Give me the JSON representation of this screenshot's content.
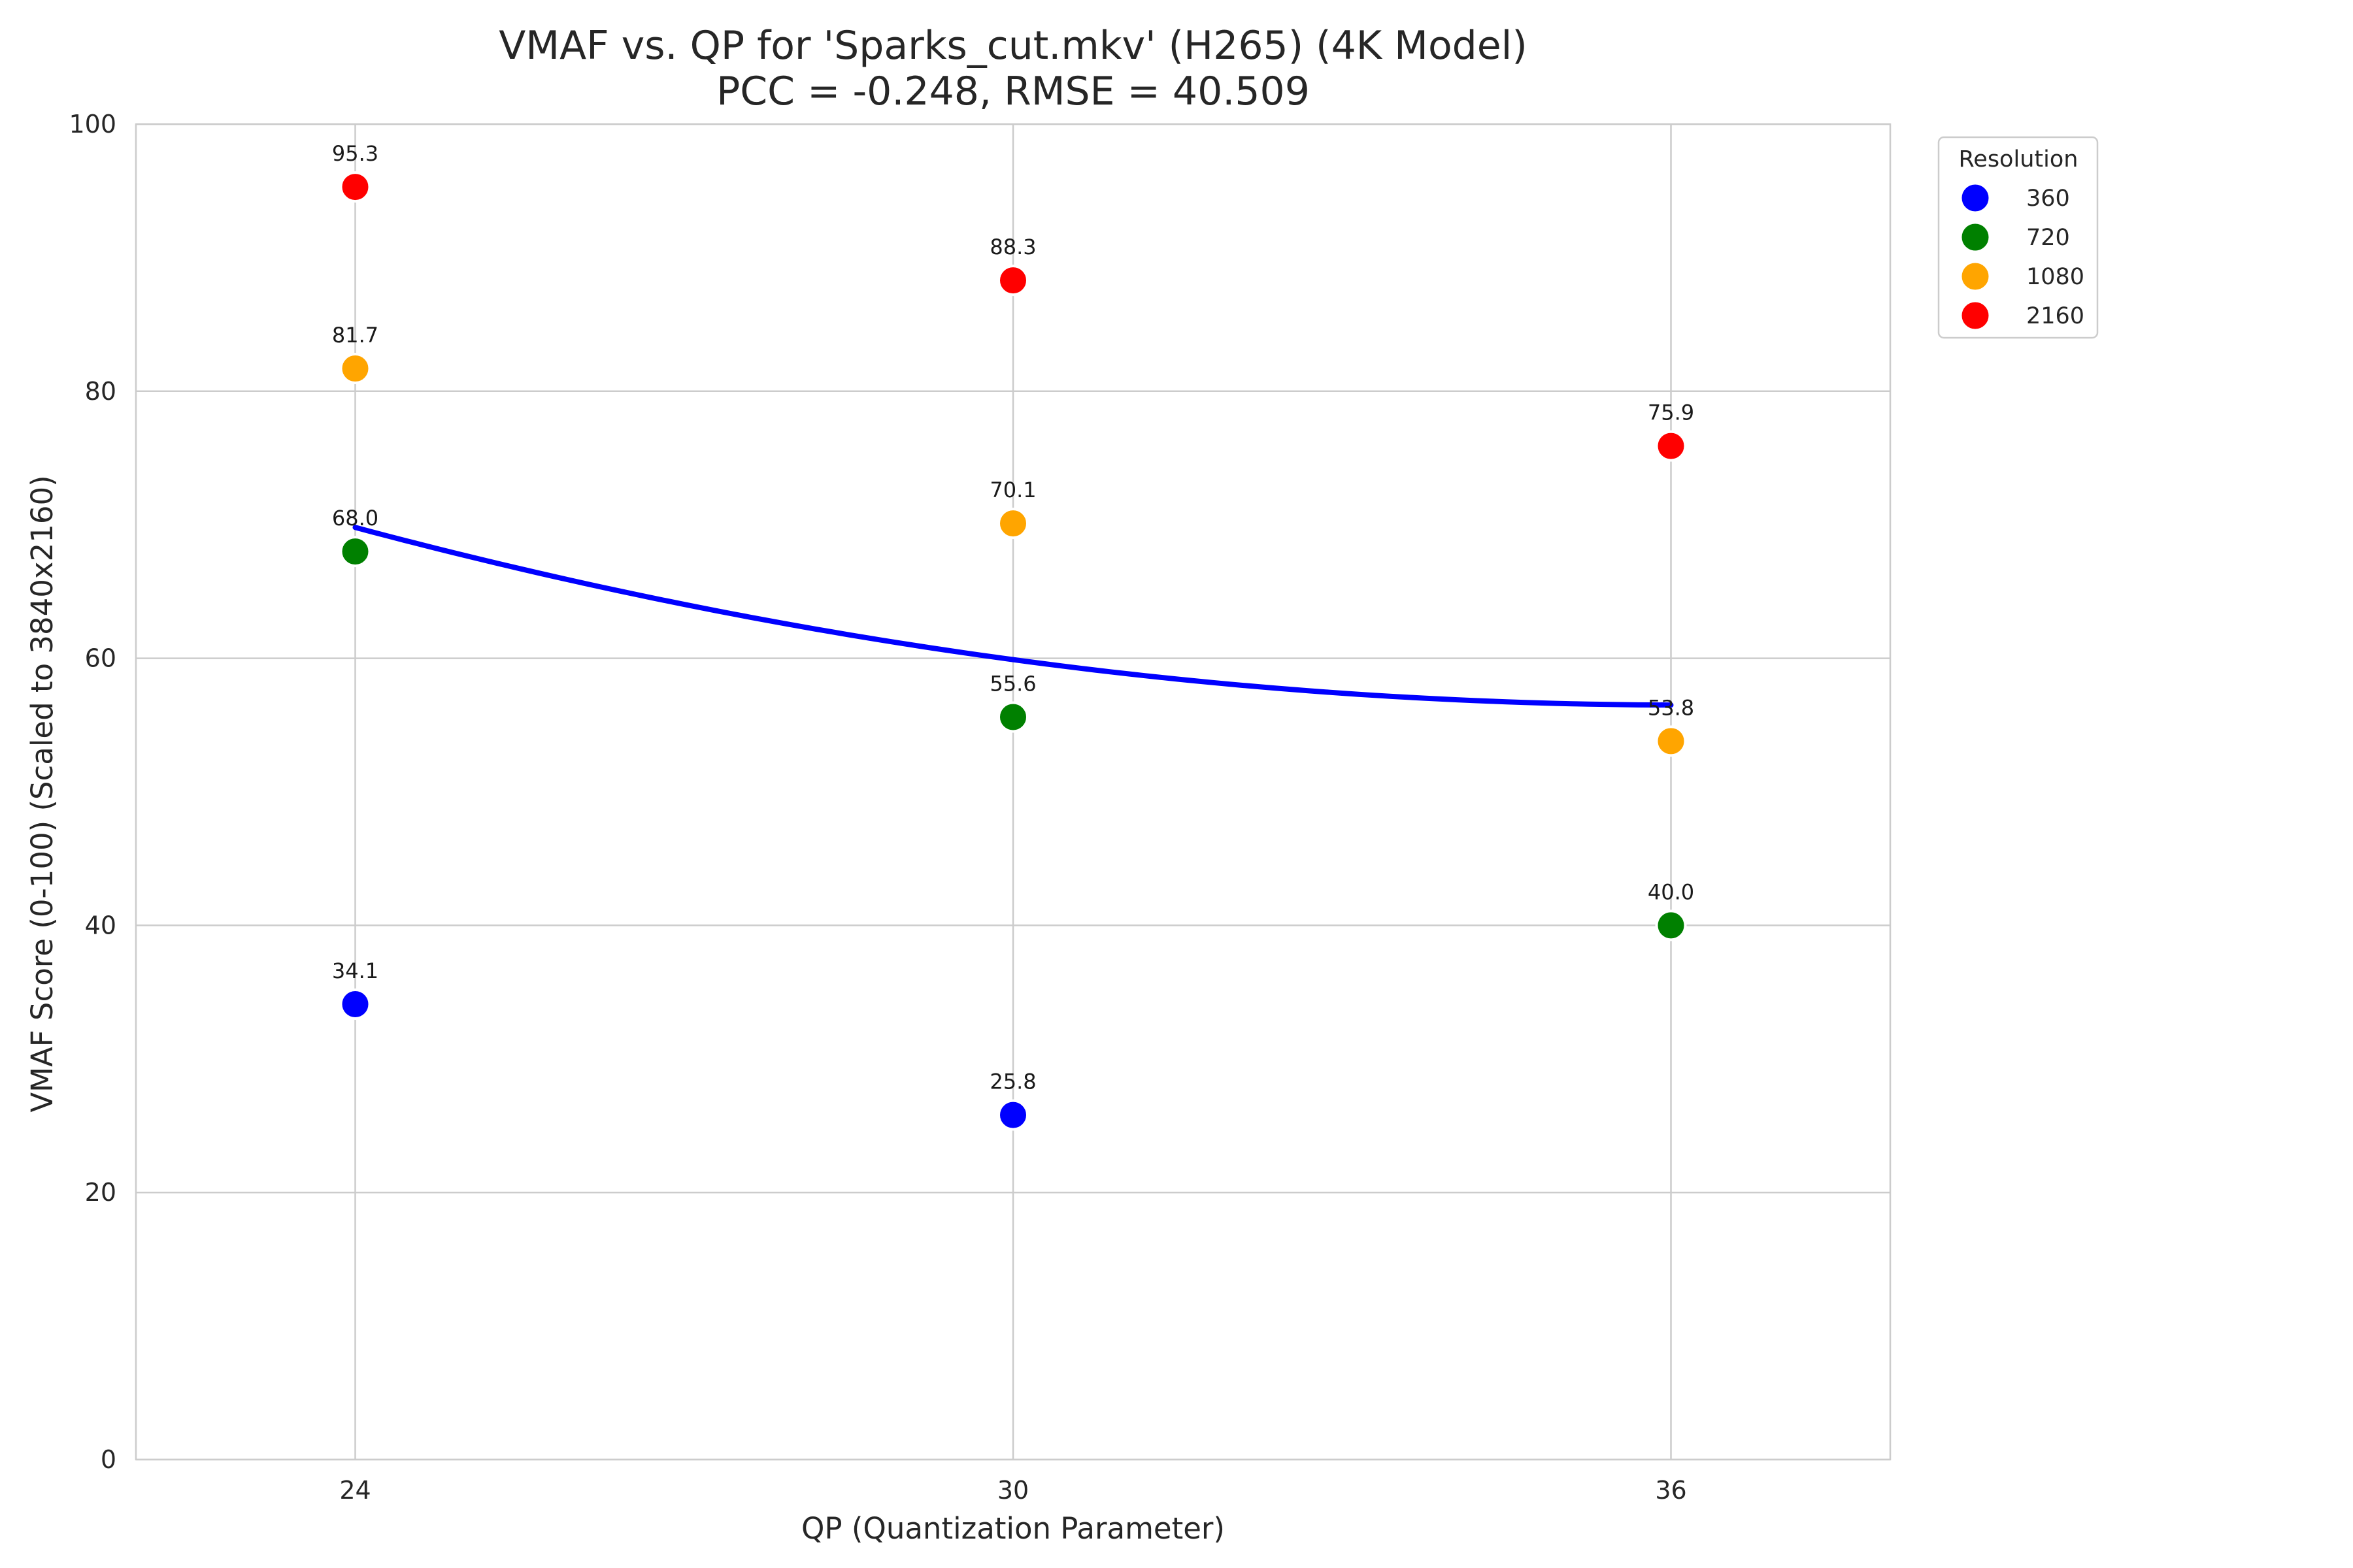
{
  "chart_data": {
    "type": "scatter",
    "title_lines": [
      "VMAF vs. QP for 'Sparks_cut.mkv' (H265) (4K Model)",
      "PCC = -0.248, RMSE = 40.509"
    ],
    "xlabel": "QP (Quantization Parameter)",
    "ylabel": "VMAF Score (0-100) (Scaled to 3840x2160)",
    "xlim": [
      22,
      38
    ],
    "ylim": [
      0,
      100
    ],
    "xticks": [
      24,
      30,
      36
    ],
    "yticks": [
      0,
      20,
      40,
      60,
      80,
      100
    ],
    "grid": true,
    "legend": {
      "title": "Resolution",
      "position": "outside-top-right"
    },
    "series": [
      {
        "name": "360",
        "color": "#0000ff",
        "points": [
          {
            "x": 24,
            "y": 34.1,
            "label": "34.1"
          },
          {
            "x": 30,
            "y": 25.8,
            "label": "25.8"
          }
        ]
      },
      {
        "name": "720",
        "color": "#008000",
        "points": [
          {
            "x": 24,
            "y": 68.0,
            "label": "68.0"
          },
          {
            "x": 30,
            "y": 55.6,
            "label": "55.6"
          },
          {
            "x": 36,
            "y": 40.0,
            "label": "40.0"
          }
        ]
      },
      {
        "name": "1080",
        "color": "#ffa500",
        "points": [
          {
            "x": 24,
            "y": 81.7,
            "label": "81.7"
          },
          {
            "x": 30,
            "y": 70.1,
            "label": "70.1"
          },
          {
            "x": 36,
            "y": 53.8,
            "label": "53.8"
          }
        ]
      },
      {
        "name": "2160",
        "color": "#ff0000",
        "points": [
          {
            "x": 24,
            "y": 95.3,
            "label": "95.3"
          },
          {
            "x": 30,
            "y": 88.3,
            "label": "88.3"
          },
          {
            "x": 36,
            "y": 75.9,
            "label": "75.9"
          }
        ]
      }
    ],
    "fit_curve": {
      "color": "#0000ff",
      "points": [
        {
          "x": 24,
          "y": 69.8
        },
        {
          "x": 30,
          "y": 59.9
        },
        {
          "x": 36,
          "y": 56.5
        }
      ]
    }
  }
}
